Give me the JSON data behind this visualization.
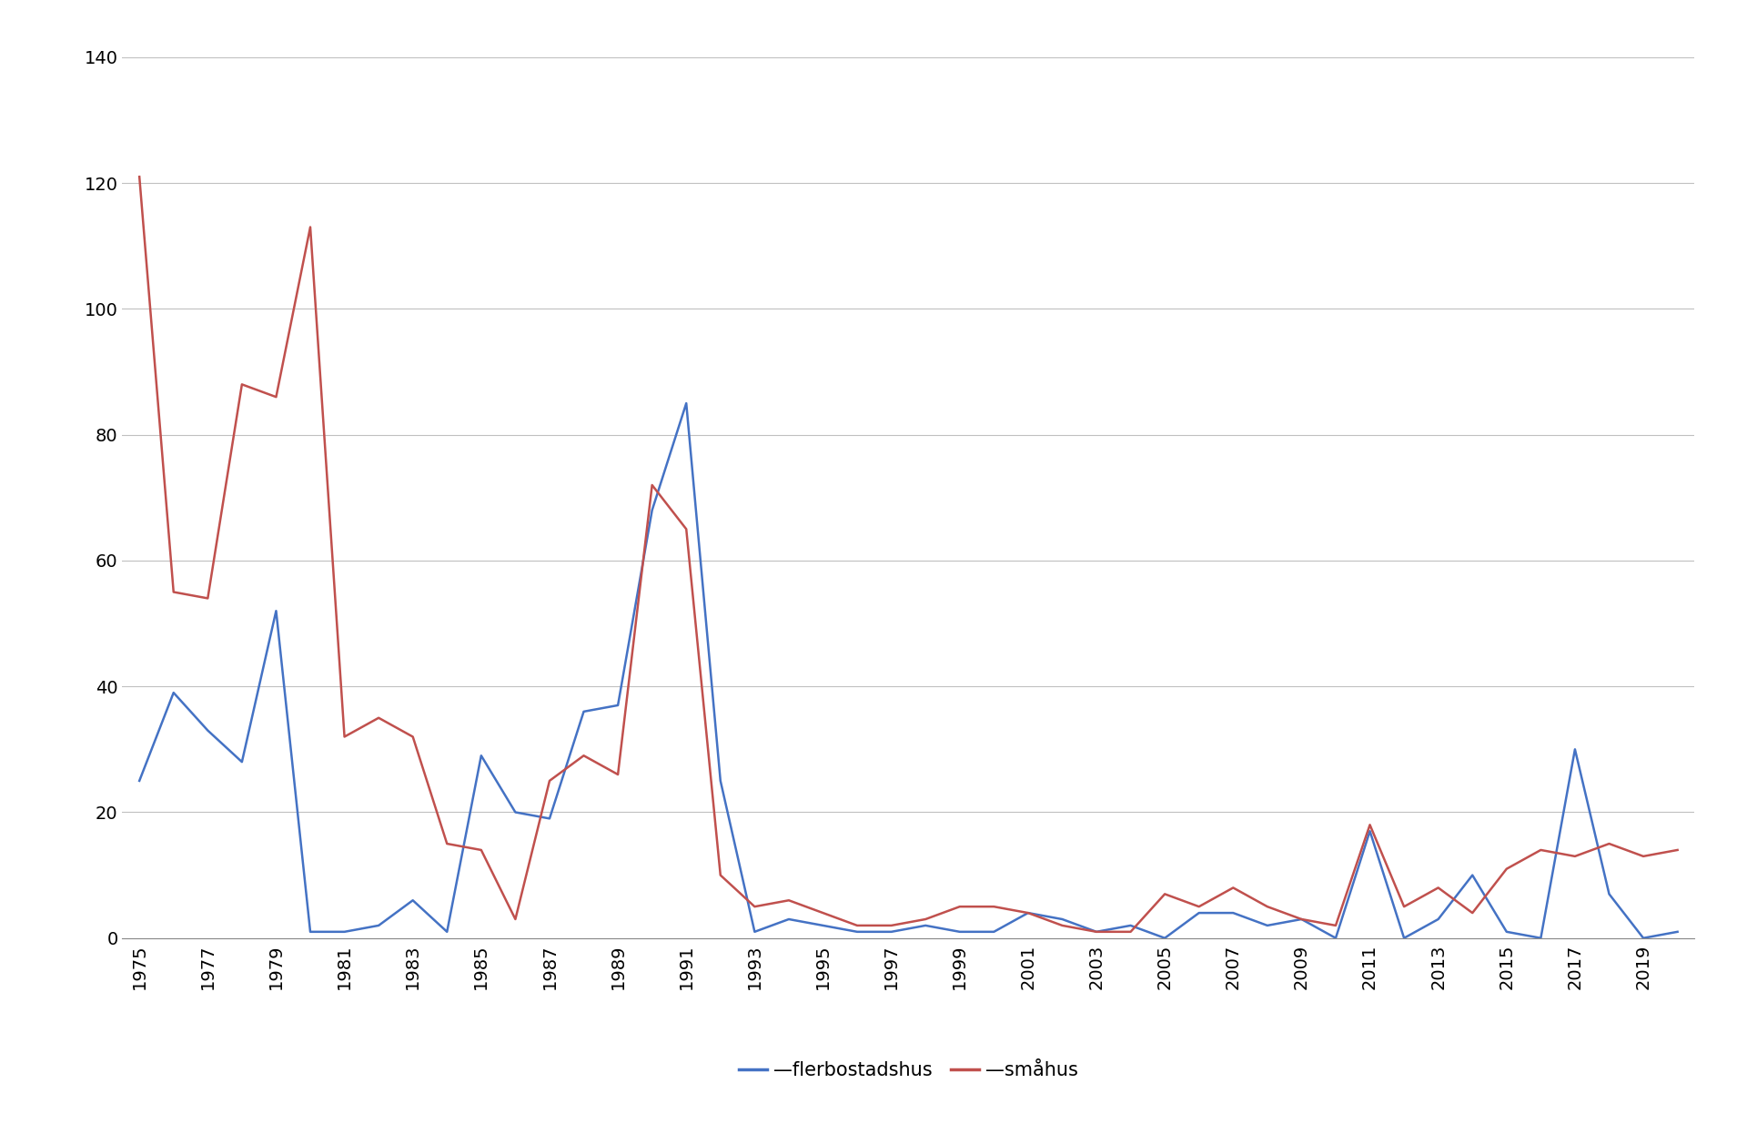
{
  "years": [
    1975,
    1976,
    1977,
    1978,
    1979,
    1980,
    1981,
    1982,
    1983,
    1984,
    1985,
    1986,
    1987,
    1988,
    1989,
    1990,
    1991,
    1992,
    1993,
    1994,
    1995,
    1996,
    1997,
    1998,
    1999,
    2000,
    2001,
    2002,
    2003,
    2004,
    2005,
    2006,
    2007,
    2008,
    2009,
    2010,
    2011,
    2012,
    2013,
    2014,
    2015,
    2016,
    2017,
    2018,
    2019,
    2020
  ],
  "flerbostadshus": [
    25,
    39,
    33,
    28,
    52,
    1,
    1,
    2,
    6,
    1,
    29,
    20,
    19,
    36,
    37,
    68,
    85,
    25,
    1,
    3,
    2,
    1,
    1,
    2,
    1,
    1,
    4,
    3,
    1,
    2,
    0,
    4,
    4,
    2,
    3,
    0,
    17,
    0,
    3,
    10,
    1,
    0,
    30,
    7,
    0,
    1
  ],
  "smahus": [
    121,
    55,
    54,
    88,
    86,
    113,
    32,
    35,
    32,
    15,
    14,
    3,
    25,
    29,
    26,
    72,
    65,
    10,
    5,
    6,
    4,
    2,
    2,
    3,
    5,
    5,
    4,
    2,
    1,
    1,
    7,
    5,
    8,
    5,
    3,
    2,
    18,
    5,
    8,
    4,
    11,
    14,
    13,
    15,
    13,
    14
  ],
  "flerbostadshus_color": "#4472C4",
  "smahus_color": "#C0504D",
  "background_color": "#ffffff",
  "ylim": [
    0,
    140
  ],
  "yticks": [
    0,
    20,
    40,
    60,
    80,
    100,
    120,
    140
  ],
  "xtick_step": 2,
  "legend_labels": [
    "—flerbostadshus",
    "—småhus"
  ],
  "legend_colors": [
    "#4472C4",
    "#C0504D"
  ],
  "grid_color": "#c0c0c0",
  "line_width": 1.8,
  "figsize": [
    19.2,
    12.57
  ],
  "dpi": 100
}
